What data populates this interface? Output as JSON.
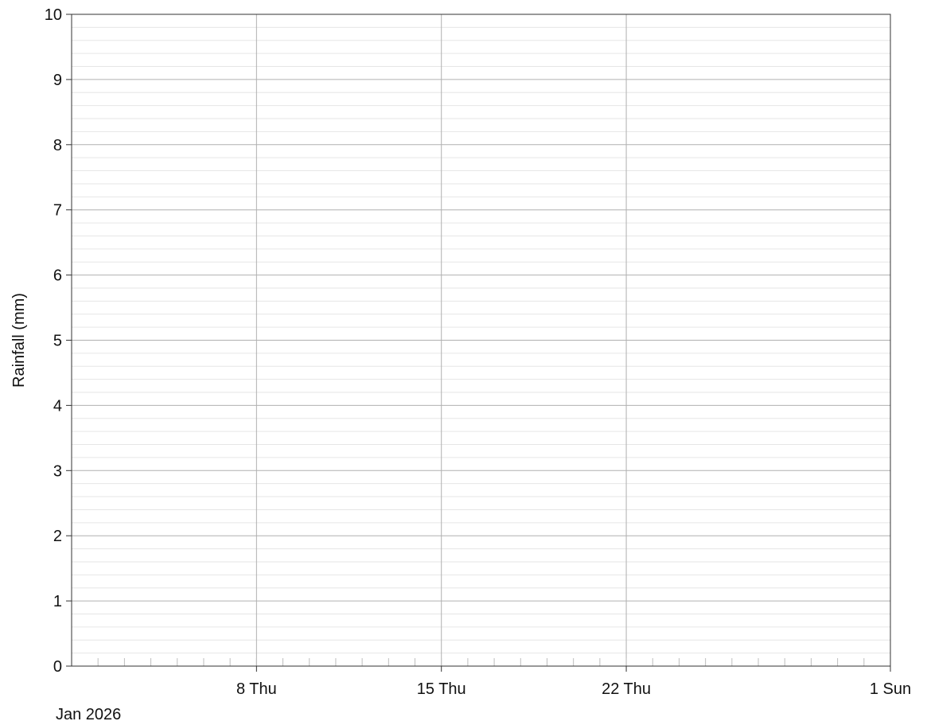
{
  "chart_data": {
    "type": "bar",
    "title": "",
    "ylabel": "Rainfall (mm)",
    "xlabel": "",
    "period_label": "Jan 2026",
    "ylim": [
      0,
      10
    ],
    "y_ticks": [
      "0",
      "1",
      "2",
      "3",
      "4",
      "5",
      "6",
      "7",
      "8",
      "9",
      "10"
    ],
    "x_range": [
      "2026-01-01",
      "2026-02-01"
    ],
    "x_tick_labels": [
      {
        "date": "2026-01-08",
        "label": "8 Thu"
      },
      {
        "date": "2026-01-15",
        "label": "15 Thu"
      },
      {
        "date": "2026-01-22",
        "label": "22 Thu"
      },
      {
        "date": "2026-02-01",
        "label": "1 Sun"
      }
    ],
    "series": [
      {
        "values": []
      }
    ],
    "grid": true,
    "colors": {
      "axis": "#333333",
      "major_grid": "#b0b0b0",
      "minor_grid": "#e6e6e6"
    }
  }
}
